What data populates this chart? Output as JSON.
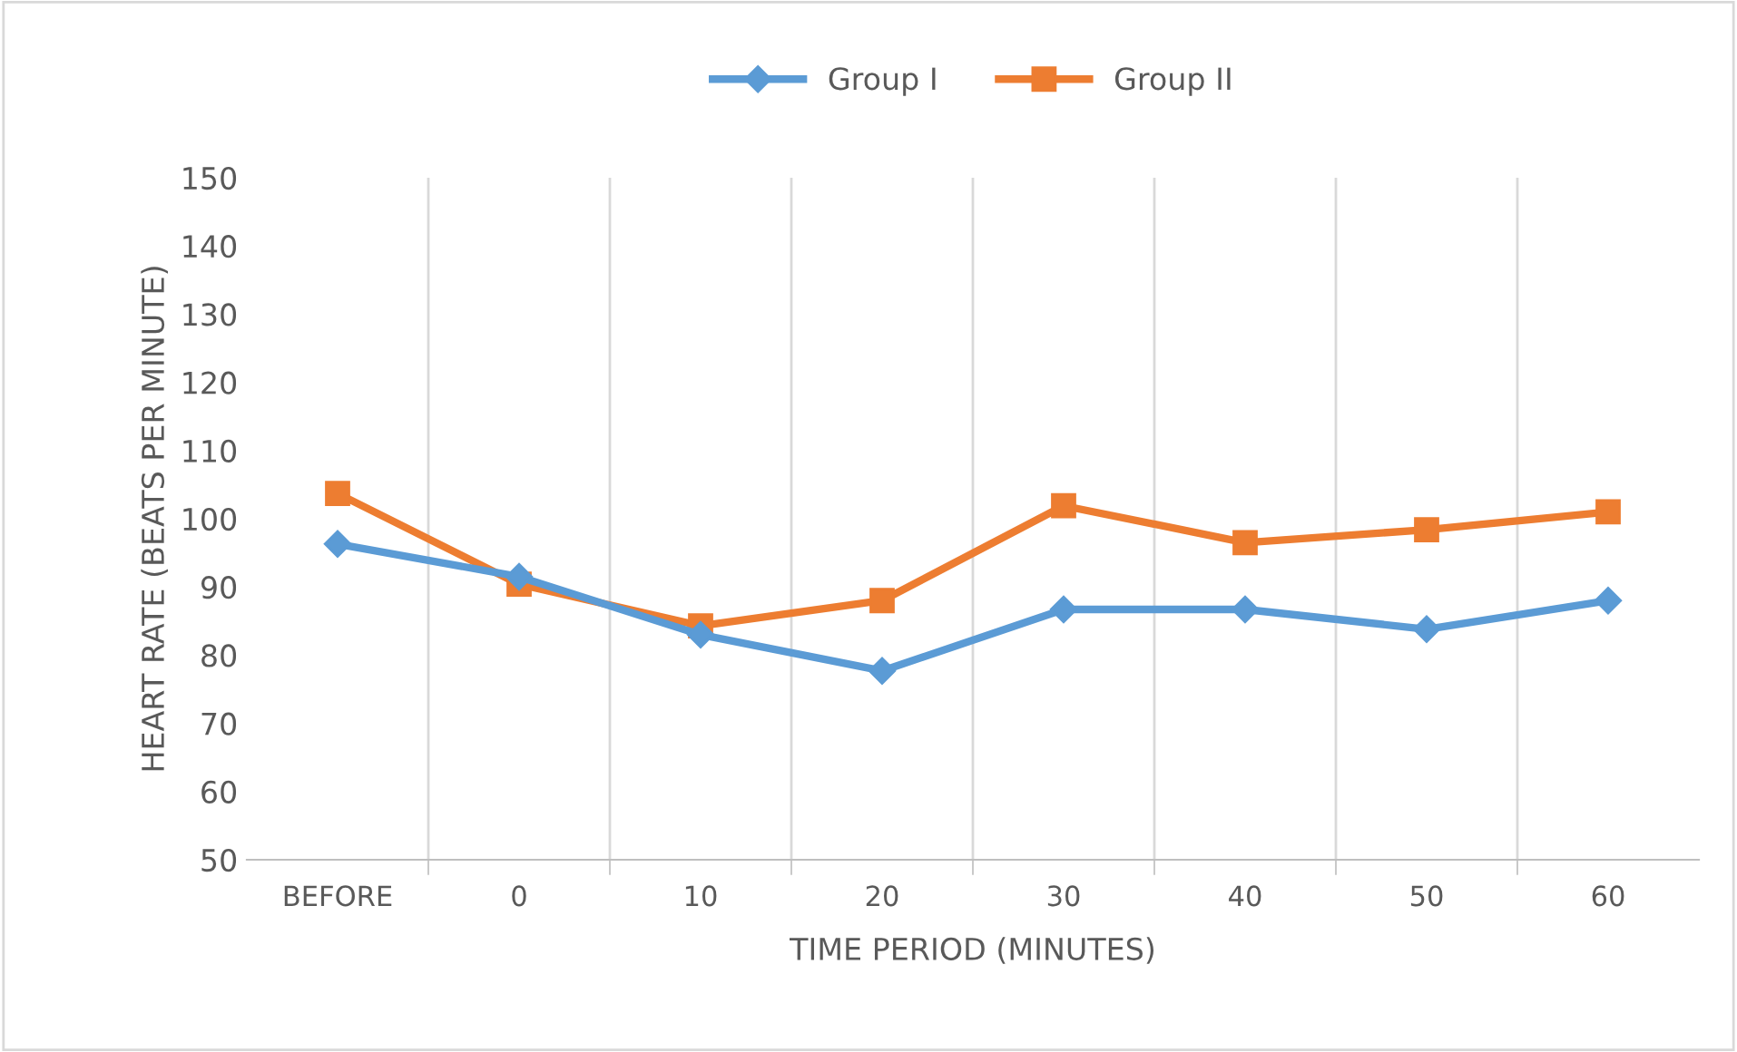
{
  "chart_data": {
    "type": "line",
    "xlabel": "TIME PERIOD (MINUTES)",
    "ylabel": "HEART RATE (BEATS PER MINUTE)",
    "categories": [
      "BEFORE",
      "0",
      "10",
      "20",
      "30",
      "40",
      "50",
      "60"
    ],
    "series": [
      {
        "name": "Group I",
        "color": "#5b9bd5",
        "marker": "diamond",
        "values": [
          96.3,
          91.5,
          83,
          77.7,
          86.7,
          86.7,
          83.8,
          88
        ]
      },
      {
        "name": "Group II",
        "color": "#ed7d31",
        "marker": "square",
        "values": [
          103.7,
          90.4,
          84.3,
          88,
          101.9,
          96.5,
          98.4,
          101
        ]
      }
    ],
    "ylim": [
      50,
      150
    ],
    "yticks": [
      50,
      60,
      70,
      80,
      90,
      100,
      110,
      120,
      130,
      140,
      150
    ],
    "grid": "x",
    "legend": "top"
  }
}
